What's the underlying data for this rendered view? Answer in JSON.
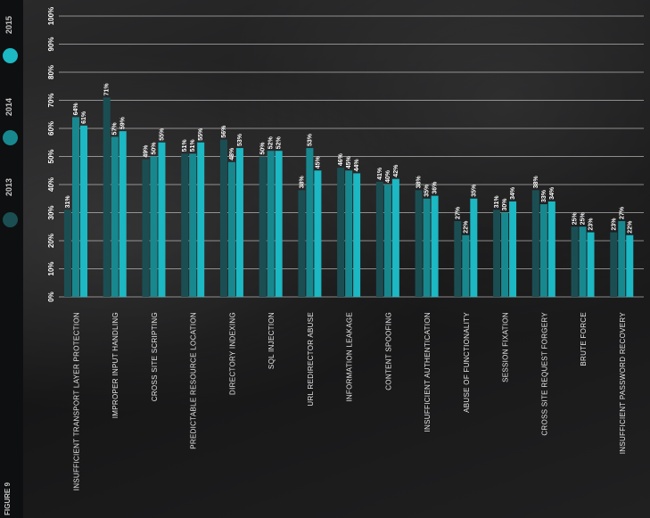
{
  "figure_label": "FIGURE 9",
  "colors": {
    "2013": "#1b4e53",
    "2014": "#18888f",
    "2015": "#1cb8c3"
  },
  "legend": [
    {
      "year": "2015",
      "color": "#1cb8c3"
    },
    {
      "year": "2014",
      "color": "#18888f"
    },
    {
      "year": "2013",
      "color": "#1b4e53"
    }
  ],
  "chart_data": {
    "type": "bar",
    "ylim": [
      0,
      100
    ],
    "y_ticks": [
      "0%",
      "10%",
      "20%",
      "30%",
      "40%",
      "50%",
      "60%",
      "70%",
      "80%",
      "90%",
      "100%"
    ],
    "grid": true,
    "legend_position": "left",
    "categories": [
      "INSUFFICIENT TRANSPORT LAYER PROTECTION",
      "IMPROPER INPUT HANDLING",
      "CROSS SITE SCRIPTING",
      "PREDICTABLE RESOURCE LOCATION",
      "DIRECTORY INDEXING",
      "SQL INJECTION",
      "URL REDIRECTOR ABUSE",
      "INFORMATION LEAKAGE",
      "CONTENT SPOOFING",
      "INSUFFICIENT AUTHENTICATION",
      "ABUSE OF FUNCTIONALITY",
      "SESSION FIXATION",
      "CROSS SITE REQUEST FORGERY",
      "BRUTE FORCE",
      "INSUFFICIENT PASSWORD RECOVERY"
    ],
    "series": [
      {
        "name": "2013",
        "values": [
          31,
          71,
          49,
          51,
          56,
          50,
          38,
          46,
          41,
          38,
          27,
          31,
          38,
          25,
          23
        ]
      },
      {
        "name": "2014",
        "values": [
          64,
          57,
          50,
          51,
          48,
          52,
          53,
          45,
          40,
          35,
          22,
          30,
          33,
          25,
          27
        ]
      },
      {
        "name": "2015",
        "values": [
          61,
          59,
          55,
          55,
          53,
          52,
          45,
          44,
          42,
          36,
          35,
          34,
          34,
          23,
          22
        ]
      }
    ]
  }
}
